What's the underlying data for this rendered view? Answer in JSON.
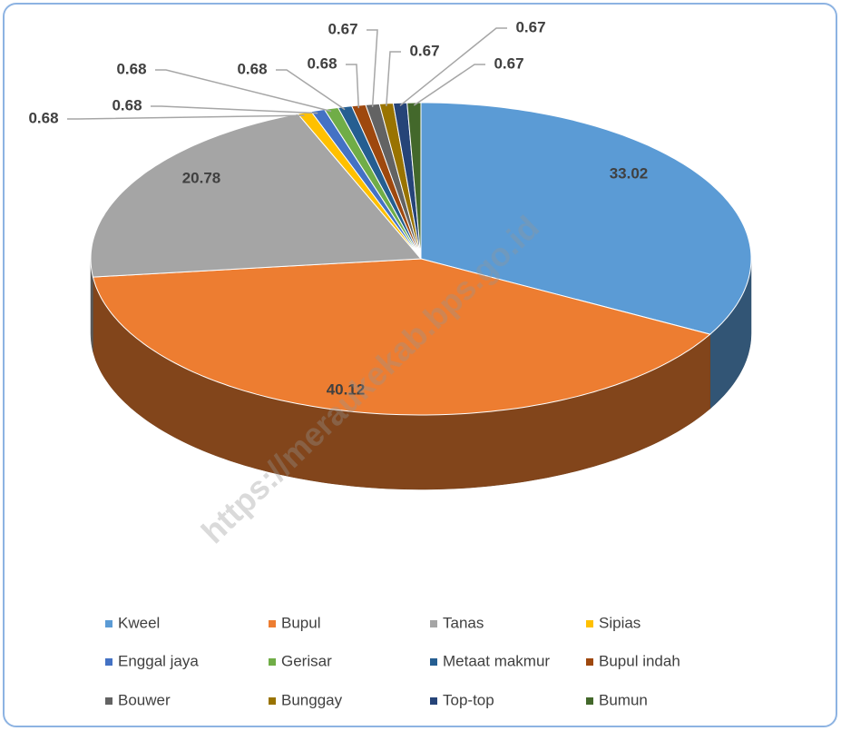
{
  "chart_data": {
    "type": "pie3d",
    "categories": [
      "Kweel",
      "Bupul",
      "Tanas",
      "Sipias",
      "Enggal jaya",
      "Gerisar",
      "Metaat makmur",
      "Bupul indah",
      "Bouwer",
      "Bunggay",
      "Top-top",
      "Bumun"
    ],
    "values": [
      33.02,
      40.12,
      20.78,
      0.68,
      0.68,
      0.68,
      0.68,
      0.68,
      0.67,
      0.67,
      0.67,
      0.67
    ],
    "colors": [
      "#5b9bd5",
      "#ed7d31",
      "#a5a5a5",
      "#ffc000",
      "#4472c4",
      "#70ad47",
      "#255e91",
      "#9e480e",
      "#636363",
      "#997300",
      "#264478",
      "#43682b"
    ],
    "legend": "bottom",
    "watermark": "https://meraukekab.bps.go.id"
  }
}
